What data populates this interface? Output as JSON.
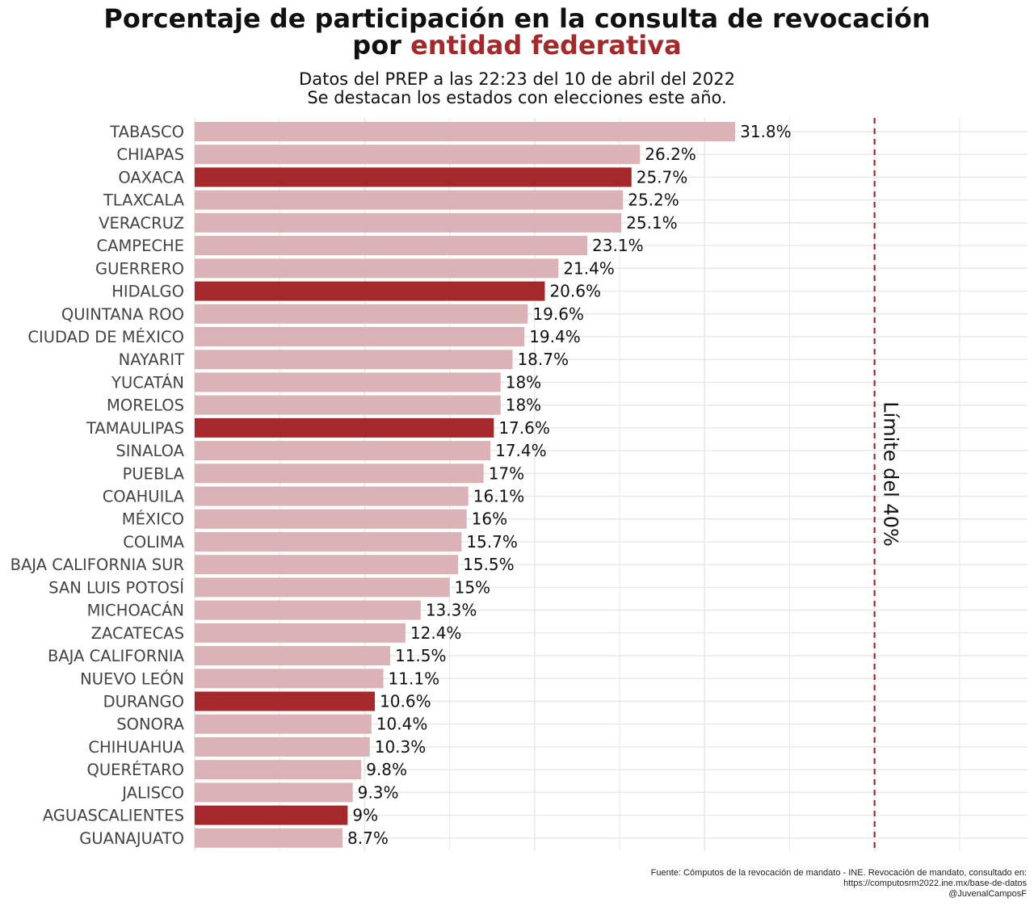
{
  "title": {
    "line1": "Porcentaje de participación en la consulta de revocación",
    "line2_prefix": "por ",
    "line2_accent": "entidad federativa"
  },
  "subtitle": {
    "line1": "Datos del PREP a las 22:23 del 10 de abril del 2022",
    "line2": "Se destacan los estados con elecciones este año."
  },
  "colors": {
    "highlight": "#a5282b",
    "normal": "#dbb3b7",
    "grid": "#e8e8e8",
    "reference": "#a5282b"
  },
  "chart_data": {
    "type": "bar",
    "orientation": "horizontal",
    "title": "Porcentaje de participación en la consulta de revocación por entidad federativa",
    "xlabel": "",
    "ylabel": "",
    "xlim": [
      0,
      49
    ],
    "grid": true,
    "categories": [
      "TABASCO",
      "CHIAPAS",
      "OAXACA",
      "TLAXCALA",
      "VERACRUZ",
      "CAMPECHE",
      "GUERRERO",
      "HIDALGO",
      "QUINTANA ROO",
      "CIUDAD DE MÉXICO",
      "NAYARIT",
      "YUCATÁN",
      "MORELOS",
      "TAMAULIPAS",
      "SINALOA",
      "PUEBLA",
      "COAHUILA",
      "MÉXICO",
      "COLIMA",
      "BAJA CALIFORNIA SUR",
      "SAN LUIS POTOSÍ",
      "MICHOACÁN",
      "ZACATECAS",
      "BAJA CALIFORNIA",
      "NUEVO LEÓN",
      "DURANGO",
      "SONORA",
      "CHIHUAHUA",
      "QUERÉTARO",
      "JALISCO",
      "AGUASCALIENTES",
      "GUANAJUATO"
    ],
    "values": [
      31.8,
      26.2,
      25.7,
      25.2,
      25.1,
      23.1,
      21.4,
      20.6,
      19.6,
      19.4,
      18.7,
      18,
      18,
      17.6,
      17.4,
      17,
      16.1,
      16,
      15.7,
      15.5,
      15,
      13.3,
      12.4,
      11.5,
      11.1,
      10.6,
      10.4,
      10.3,
      9.8,
      9.3,
      9,
      8.7
    ],
    "value_labels": [
      "31.8%",
      "26.2%",
      "25.7%",
      "25.2%",
      "25.1%",
      "23.1%",
      "21.4%",
      "20.6%",
      "19.6%",
      "19.4%",
      "18.7%",
      "18%",
      "18%",
      "17.6%",
      "17.4%",
      "17%",
      "16.1%",
      "16%",
      "15.7%",
      "15.5%",
      "15%",
      "13.3%",
      "12.4%",
      "11.5%",
      "11.1%",
      "10.6%",
      "10.4%",
      "10.3%",
      "9.8%",
      "9.3%",
      "9%",
      "8.7%"
    ],
    "highlighted": [
      "OAXACA",
      "HIDALGO",
      "TAMAULIPAS",
      "DURANGO",
      "AGUASCALIENTES"
    ],
    "reference_line": {
      "value": 40,
      "label": "Límite del 40%",
      "style": "dashed"
    }
  },
  "caption": {
    "line1": "Fuente: Cómputos de la revocación de mandato - INE. Revocación de mandato, consultado en:",
    "line2": "https://computosrm2022.ine.mx/base-de-datos",
    "line3": "@JuvenalCamposF"
  }
}
